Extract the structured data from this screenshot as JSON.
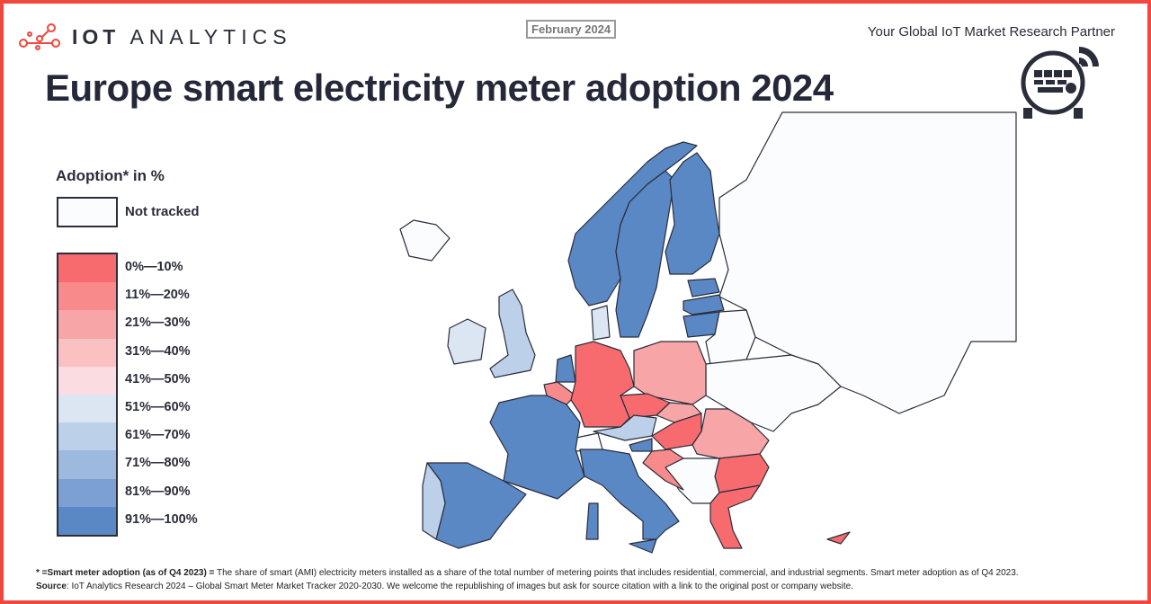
{
  "brand": {
    "logo_bold": "IOT",
    "logo_rest": "ANALYTICS",
    "tagline": "Your Global IoT Market Research Partner",
    "accent": "#f0473f"
  },
  "date_badge": "February 2024",
  "title": "Europe smart electricity meter adoption 2024",
  "legend": {
    "title": "Adoption* in %",
    "not_tracked": {
      "label": "Not tracked",
      "color": "#fbfcfd"
    },
    "bins": [
      {
        "label": "0%—10%",
        "color": "#f76b6f"
      },
      {
        "label": "11%—20%",
        "color": "#f88a8b"
      },
      {
        "label": "21%—30%",
        "color": "#f8a5a7"
      },
      {
        "label": "31%—40%",
        "color": "#fac0c2"
      },
      {
        "label": "41%—50%",
        "color": "#fbdde1"
      },
      {
        "label": "51%—60%",
        "color": "#dce6f3"
      },
      {
        "label": "61%—70%",
        "color": "#bcd0e9"
      },
      {
        "label": "71%—80%",
        "color": "#9db9de"
      },
      {
        "label": "81%—90%",
        "color": "#7ca0d2"
      },
      {
        "label": "91%—100%",
        "color": "#5a88c4"
      }
    ]
  },
  "map_data": {
    "type": "choropleth",
    "countries": [
      {
        "id": "norway",
        "bin": 9
      },
      {
        "id": "sweden",
        "bin": 9
      },
      {
        "id": "finland",
        "bin": 9
      },
      {
        "id": "estonia",
        "bin": 9
      },
      {
        "id": "latvia",
        "bin": 9
      },
      {
        "id": "lithuania",
        "bin": 9
      },
      {
        "id": "united-kingdom",
        "bin": 6
      },
      {
        "id": "ireland",
        "bin": 5
      },
      {
        "id": "denmark",
        "bin": 5
      },
      {
        "id": "netherlands",
        "bin": 9
      },
      {
        "id": "belgium",
        "bin": 1
      },
      {
        "id": "germany",
        "bin": 0
      },
      {
        "id": "poland",
        "bin": 2
      },
      {
        "id": "czechia",
        "bin": 0
      },
      {
        "id": "slovakia",
        "bin": 2
      },
      {
        "id": "austria",
        "bin": 6
      },
      {
        "id": "hungary",
        "bin": 0
      },
      {
        "id": "romania",
        "bin": 2
      },
      {
        "id": "bulgaria",
        "bin": 0
      },
      {
        "id": "greece",
        "bin": 0
      },
      {
        "id": "slovenia",
        "bin": 9
      },
      {
        "id": "croatia",
        "bin": 1
      },
      {
        "id": "france",
        "bin": 9
      },
      {
        "id": "spain",
        "bin": 9
      },
      {
        "id": "portugal",
        "bin": 6
      },
      {
        "id": "italy",
        "bin": 9
      },
      {
        "id": "sicily",
        "bin": 9
      },
      {
        "id": "sardinia",
        "bin": 9
      },
      {
        "id": "cyprus",
        "bin": 0
      },
      {
        "id": "switzerland",
        "bin": null
      },
      {
        "id": "western-balkans",
        "bin": null
      },
      {
        "id": "belarus",
        "bin": null
      },
      {
        "id": "ukraine",
        "bin": null
      },
      {
        "id": "russia",
        "bin": null
      },
      {
        "id": "iceland",
        "bin": null
      }
    ]
  },
  "footer": {
    "note_bold": "* =Smart meter adoption (as of Q4 2023) =",
    "note": " The share of smart (AMI) electricity meters installed as a share of the total number of metering points that includes residential, commercial, and industrial segments.  Smart meter adoption as of Q4 2023.",
    "source_bold": "Source",
    "source": ": IoT Analytics Research 2024 – Global Smart Meter Market Tracker 2020-2030. We welcome the republishing of images but ask for source citation with a link to the original post or company website."
  }
}
